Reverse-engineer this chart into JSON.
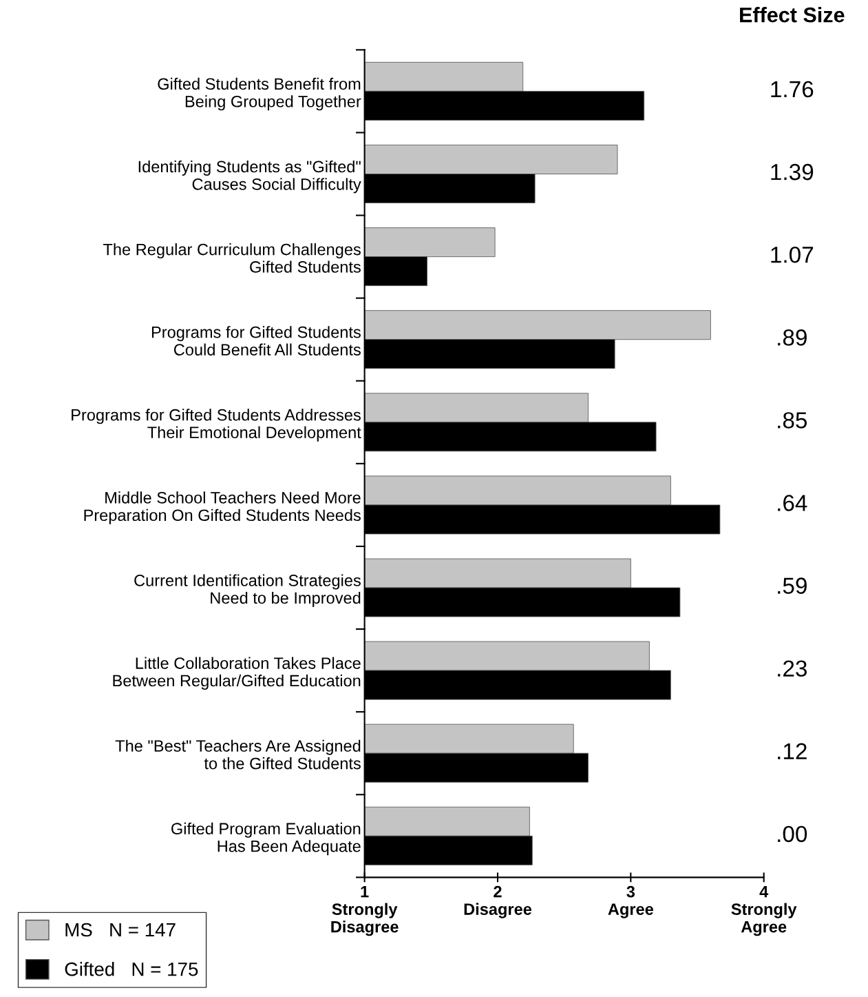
{
  "chart_data": {
    "type": "bar",
    "orientation": "horizontal",
    "categories": [
      "Gifted Students Benefit from\nBeing Grouped Together",
      "Identifying Students as \"Gifted\"\nCauses Social Difficulty",
      "The Regular Curriculum Challenges\nGifted Students",
      "Programs for Gifted Students\nCould Benefit All Students",
      "Programs for Gifted Students Addresses\nTheir Emotional Development",
      "Middle School Teachers Need More\nPreparation On Gifted Students Needs",
      "Current Identification Strategies\nNeed to be Improved",
      "Little Collaboration Takes Place\nBetween Regular/Gifted Education",
      "The \"Best\" Teachers Are Assigned\nto the Gifted Students",
      "Gifted Program Evaluation\nHas Been Adequate"
    ],
    "series": [
      {
        "name": "MS   N = 147",
        "color": "#c4c4c4",
        "values": [
          2.19,
          2.9,
          1.98,
          3.6,
          2.68,
          3.3,
          3.0,
          3.14,
          2.57,
          2.24
        ]
      },
      {
        "name": "Gifted   N = 175",
        "color": "#000000",
        "values": [
          3.1,
          2.28,
          1.47,
          2.88,
          3.19,
          3.67,
          3.37,
          3.3,
          2.68,
          2.26
        ]
      }
    ],
    "xlim": [
      1,
      4
    ],
    "xticks": [
      {
        "value": 1,
        "label": "1\nStrongly\nDisagree"
      },
      {
        "value": 2,
        "label": "2\nDisagree"
      },
      {
        "value": 3,
        "label": "3\nAgree"
      },
      {
        "value": 4,
        "label": "4\nStrongly\nAgree"
      }
    ],
    "annotations": [
      "Effect Size",
      "1.76",
      "1.39",
      "1.07",
      ".89",
      ".85",
      ".64",
      ".59",
      ".23",
      ".12",
      ".00"
    ],
    "legend": "bottom left",
    "grid": false
  }
}
